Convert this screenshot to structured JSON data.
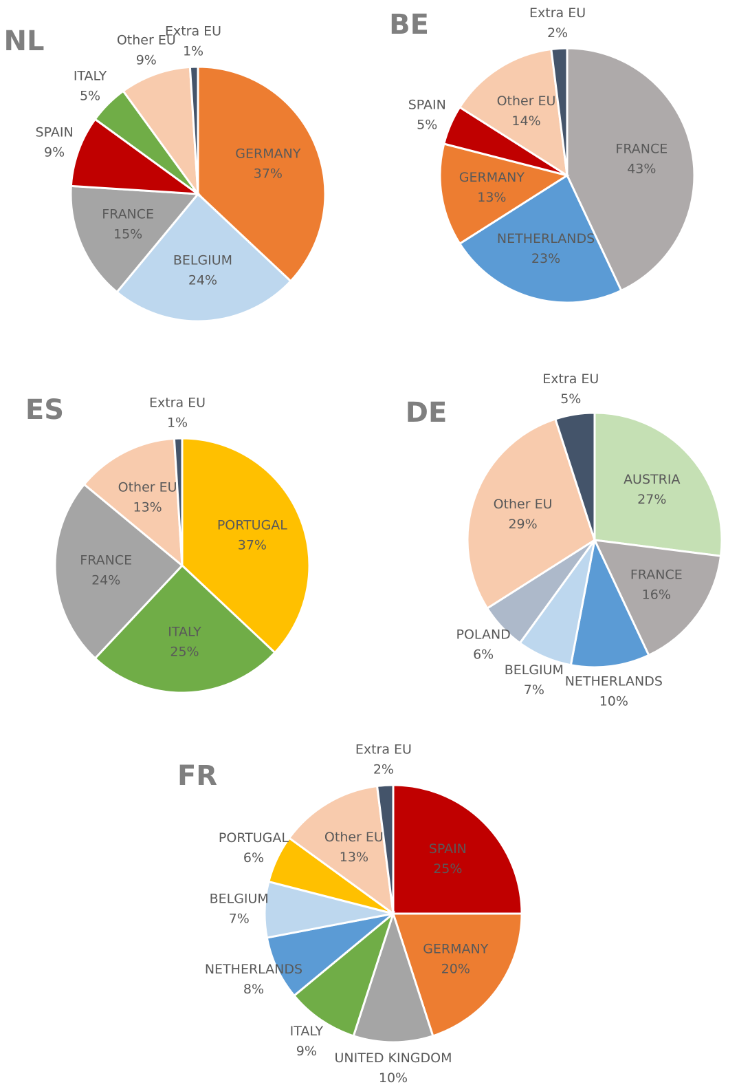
{
  "chart_data": [
    {
      "type": "pie",
      "title": "NL",
      "categories": [
        "GERMANY",
        "BELGIUM",
        "FRANCE",
        "SPAIN",
        "ITALY",
        "Other EU",
        "Extra EU"
      ],
      "values": [
        37,
        24,
        15,
        9,
        5,
        9,
        1
      ],
      "value_labels": [
        "37%",
        "24%",
        "15%",
        "9%",
        "5%",
        "9%",
        "1%"
      ],
      "colors": [
        "#ed7d31",
        "#bdd7ee",
        "#a5a5a5",
        "#c00000",
        "#70ad47",
        "#f8cbad",
        "#44546a"
      ]
    },
    {
      "type": "pie",
      "title": "BE",
      "categories": [
        "FRANCE",
        "NETHERLANDS",
        "GERMANY",
        "SPAIN",
        "Other EU",
        "Extra EU"
      ],
      "values": [
        43,
        23,
        13,
        5,
        14,
        2
      ],
      "value_labels": [
        "43%",
        "23%",
        "13%",
        "5%",
        "14%",
        "2%"
      ],
      "colors": [
        "#aeaaaa",
        "#5b9bd5",
        "#ed7d31",
        "#c00000",
        "#f8cbad",
        "#44546a"
      ]
    },
    {
      "type": "pie",
      "title": "ES",
      "categories": [
        "PORTUGAL",
        "ITALY",
        "FRANCE",
        "Other EU",
        "Extra EU"
      ],
      "values": [
        37,
        25,
        24,
        13,
        1
      ],
      "value_labels": [
        "37%",
        "25%",
        "24%",
        "13%",
        "1%"
      ],
      "colors": [
        "#ffc000",
        "#70ad47",
        "#a5a5a5",
        "#f8cbad",
        "#44546a"
      ]
    },
    {
      "type": "pie",
      "title": "DE",
      "categories": [
        "AUSTRIA",
        "FRANCE",
        "NETHERLANDS",
        "BELGIUM",
        "POLAND",
        "Other EU",
        "Extra EU"
      ],
      "values": [
        27,
        16,
        10,
        7,
        6,
        29,
        5
      ],
      "value_labels": [
        "27%",
        "16%",
        "10%",
        "7%",
        "6%",
        "29%",
        "5%"
      ],
      "colors": [
        "#c5e0b4",
        "#aeaaaa",
        "#5b9bd5",
        "#bdd7ee",
        "#adb9ca",
        "#f8cbad",
        "#44546a"
      ]
    },
    {
      "type": "pie",
      "title": "FR",
      "categories": [
        "SPAIN",
        "GERMANY",
        "UNITED KINGDOM",
        "ITALY",
        "NETHERLANDS",
        "BELGIUM",
        "PORTUGAL",
        "Other EU",
        "Extra EU"
      ],
      "values": [
        25,
        20,
        10,
        9,
        8,
        7,
        6,
        13,
        2
      ],
      "value_labels": [
        "25%",
        "20%",
        "10%",
        "9%",
        "8%",
        "7%",
        "6%",
        "13%",
        "2%"
      ],
      "colors": [
        "#c00000",
        "#ed7d31",
        "#a5a5a5",
        "#70ad47",
        "#5b9bd5",
        "#bdd7ee",
        "#ffc000",
        "#f8cbad",
        "#44546a"
      ]
    }
  ]
}
